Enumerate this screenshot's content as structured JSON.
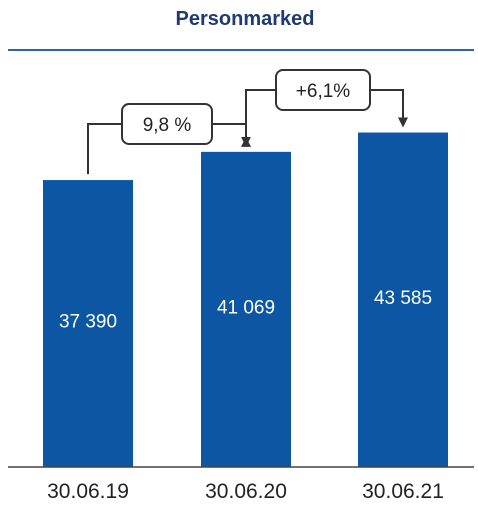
{
  "chart_data": {
    "type": "bar",
    "title": "Personmarked",
    "categories": [
      "30.06.19",
      "30.06.20",
      "30.06.21"
    ],
    "values": [
      37390,
      41069,
      43585
    ],
    "value_labels": [
      "37 390",
      "41 069",
      "43 585"
    ],
    "ylim": [
      0,
      46000
    ],
    "grid": false,
    "annotations": [
      {
        "from": 0,
        "to": 1,
        "label": "9,8 %"
      },
      {
        "from": 1,
        "to": 2,
        "label": "+6,1%"
      }
    ]
  },
  "colors": {
    "bar": "#0c56a3",
    "title": "#1f3a73",
    "title_rule": "#2c64a8",
    "axis": "#444444",
    "annotation": "#333333"
  }
}
